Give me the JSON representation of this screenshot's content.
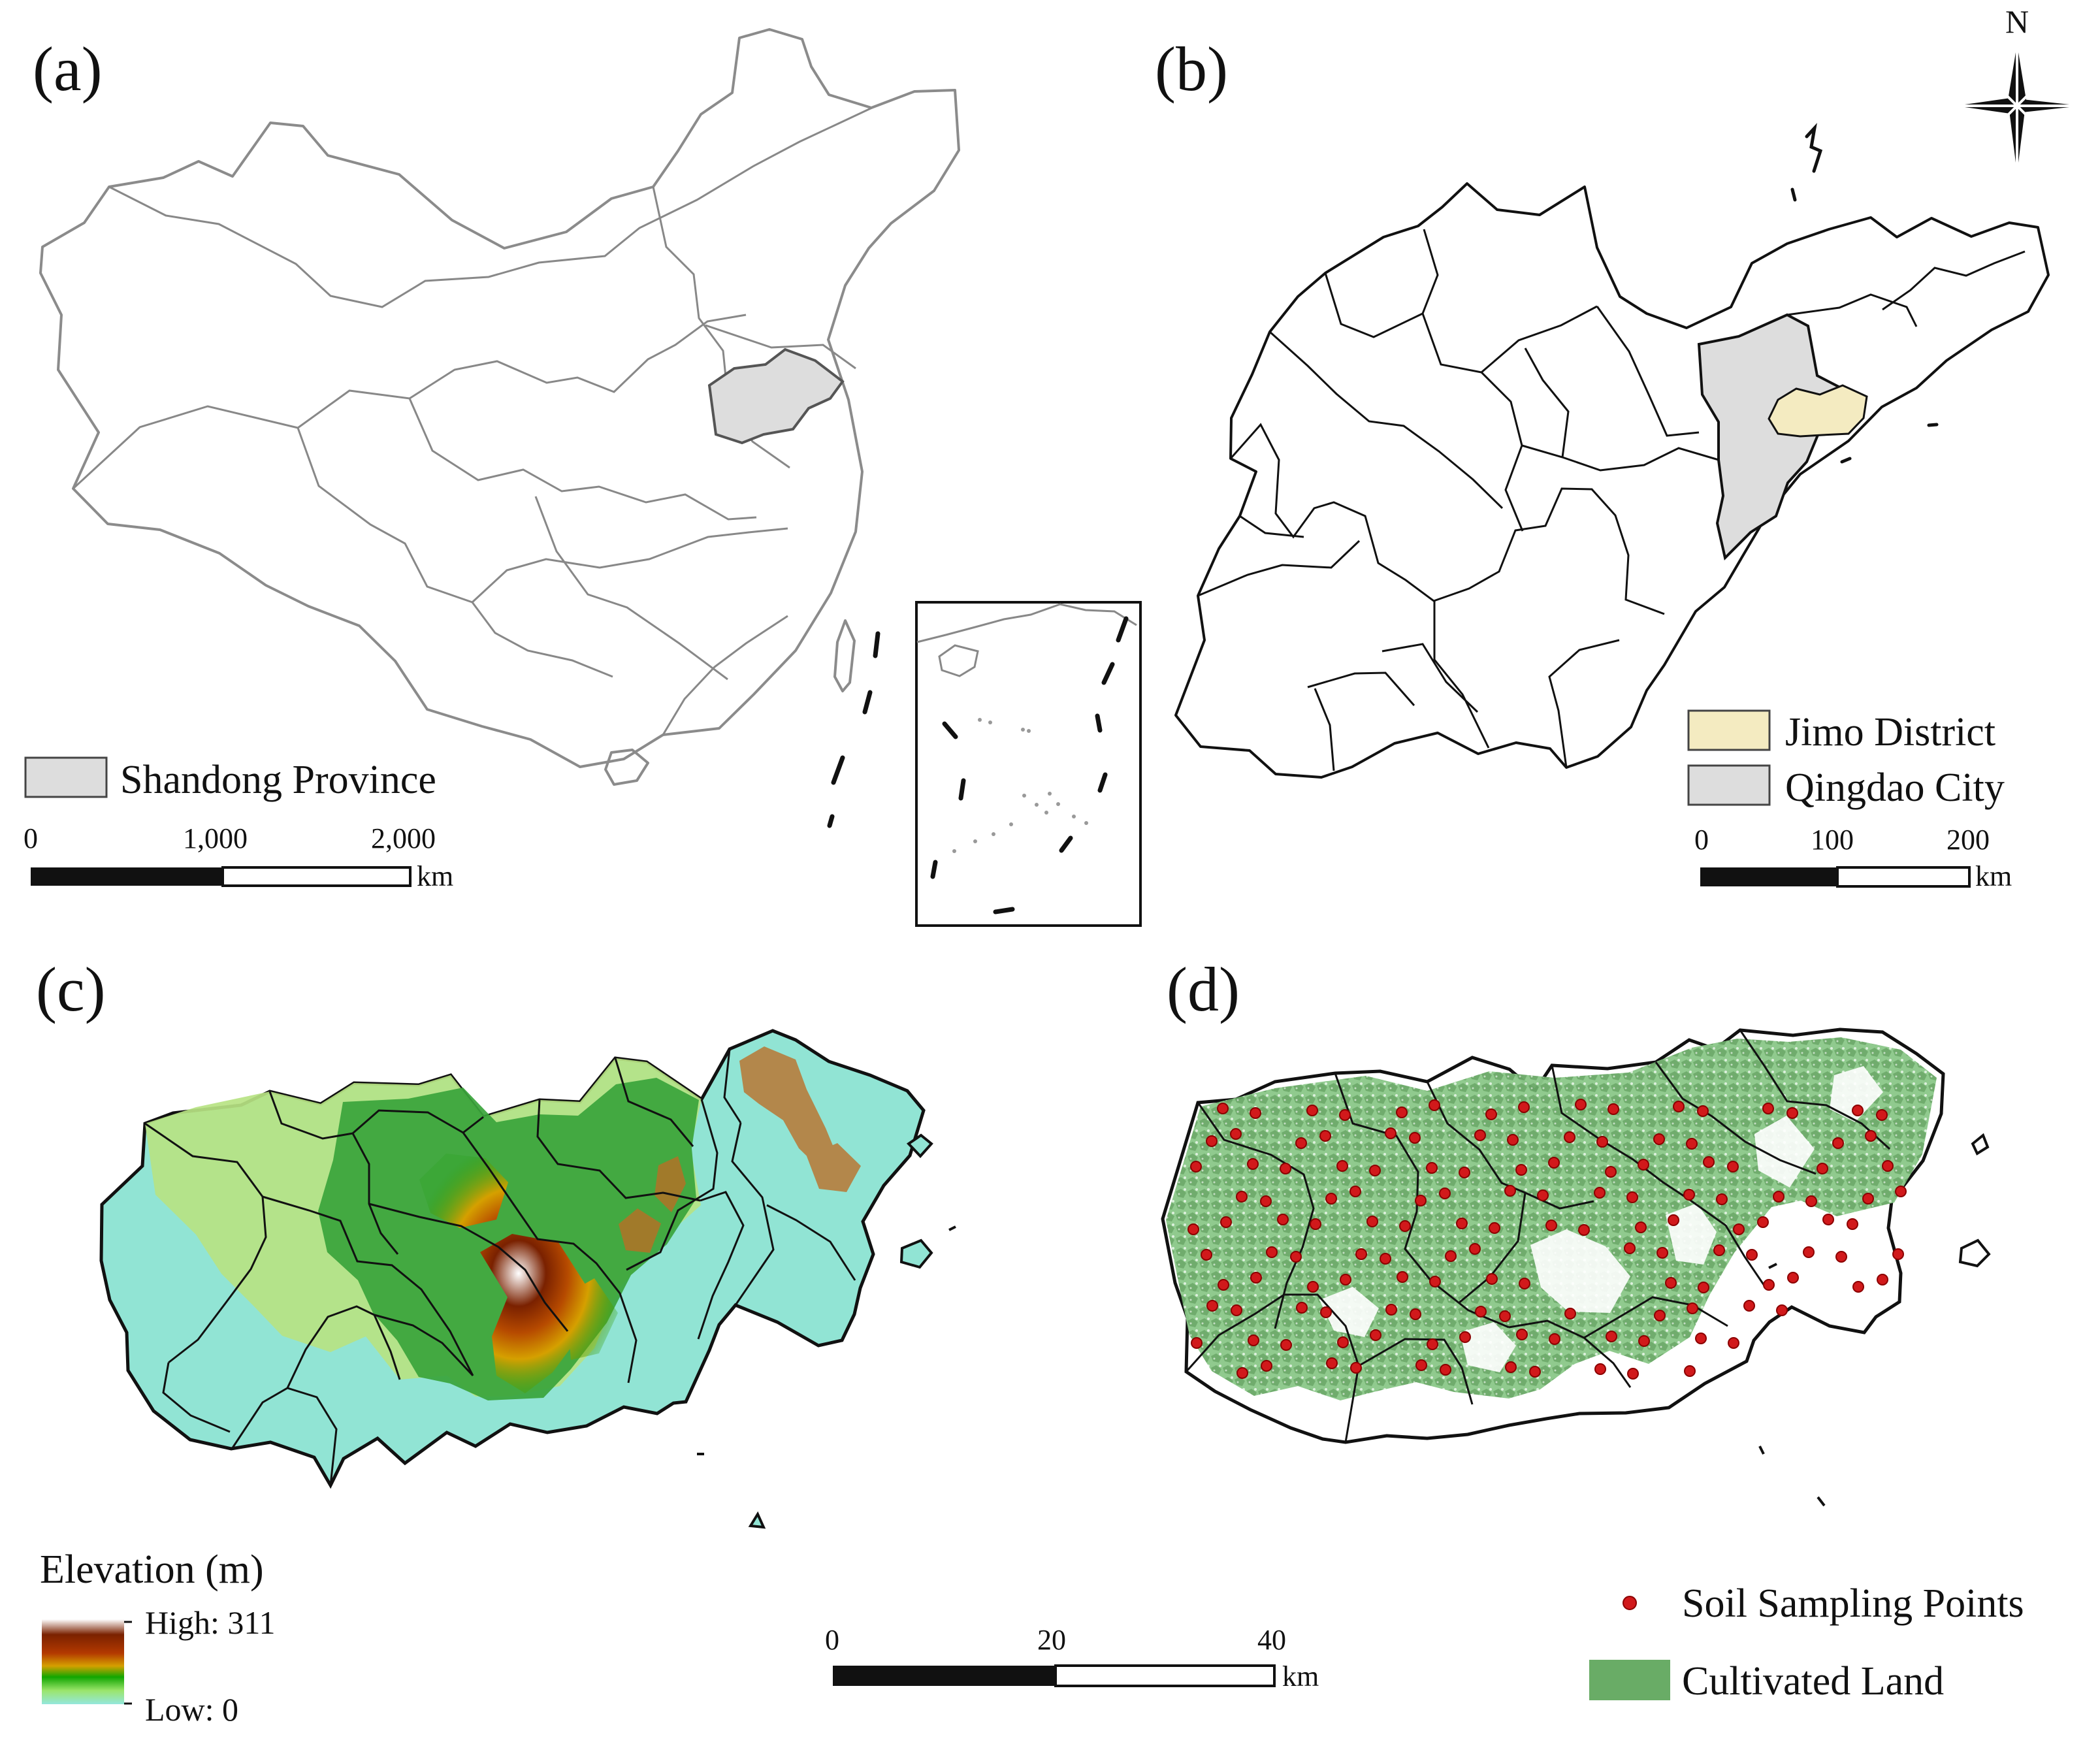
{
  "panels": {
    "a": {
      "label": "(a)",
      "legend": {
        "label": "Shandong Province",
        "color": "#dddddd"
      },
      "scale": {
        "ticks": [
          "0",
          "1,000",
          "2,000"
        ],
        "unit": "km"
      }
    },
    "b": {
      "label": "(b)",
      "north_arrow": "N",
      "legend": [
        {
          "label": "Jimo District",
          "color": "#f4ebc1"
        },
        {
          "label": "Qingdao City",
          "color": "#dddddd"
        }
      ],
      "scale": {
        "ticks": [
          "0",
          "100",
          "200"
        ],
        "unit": "km"
      }
    },
    "c": {
      "label": "(c)",
      "legend": {
        "title": "Elevation (m)",
        "high": "High: 311",
        "low": "Low: 0",
        "colors": [
          "#ffffff",
          "#7a2100",
          "#b33900",
          "#d5a000",
          "#11a600",
          "#9be56b",
          "#94e7dd"
        ]
      }
    },
    "d": {
      "label": "(d)",
      "legend": [
        {
          "label": "Soil Sampling Points",
          "color": "#d1191b"
        },
        {
          "label": "Cultivated Land",
          "color": "#69ac66"
        }
      ]
    }
  },
  "shared_scale": {
    "ticks": [
      "0",
      "20",
      "40"
    ],
    "unit": "km"
  }
}
